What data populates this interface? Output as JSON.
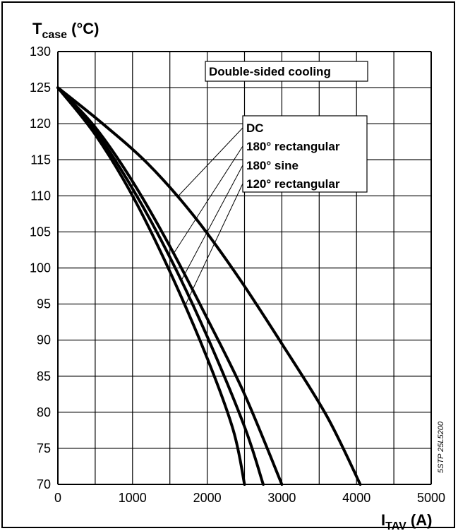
{
  "chart_data": {
    "type": "line",
    "ylabel_main": "T",
    "ylabel_sub": "case",
    "ylabel_unit": " (°C)",
    "xlabel_main": "I",
    "xlabel_sub": "TAV",
    "xlabel_unit": " (A)",
    "xlim": [
      0,
      5000
    ],
    "ylim": [
      70,
      130
    ],
    "x_ticks": [
      0,
      1000,
      2000,
      3000,
      4000,
      5000
    ],
    "y_ticks": [
      130,
      125,
      120,
      115,
      110,
      105,
      100,
      95,
      90,
      85,
      80,
      75,
      70
    ],
    "grid": true,
    "box_label": "Double-sided cooling",
    "series_labels": [
      "DC",
      "180° rectangular",
      "180° sine",
      "120° rectangular"
    ],
    "code_label": "5STP 25L5200",
    "series": [
      {
        "name": "DC",
        "x": [
          0,
          600,
          1200,
          1800,
          2400,
          3000,
          3600,
          4050
        ],
        "y": [
          125,
          120,
          114.5,
          107.5,
          99,
          89.5,
          79.5,
          70
        ]
      },
      {
        "name": "180° rectangular",
        "x": [
          0,
          500,
          1000,
          1500,
          2000,
          2500,
          3000
        ],
        "y": [
          125,
          119.5,
          112,
          103,
          93,
          82.5,
          70
        ]
      },
      {
        "name": "180° sine",
        "x": [
          0,
          500,
          1000,
          1500,
          2000,
          2500,
          2750
        ],
        "y": [
          125,
          119,
          111,
          101.5,
          90.5,
          78,
          70
        ]
      },
      {
        "name": "120° rectangular",
        "x": [
          0,
          500,
          1000,
          1500,
          2000,
          2350,
          2500
        ],
        "y": [
          125,
          118.5,
          110,
          99.5,
          87.5,
          77.5,
          70
        ]
      }
    ],
    "colors": {
      "line": "#000000",
      "grid": "#000000",
      "background": "#ffffff"
    }
  }
}
